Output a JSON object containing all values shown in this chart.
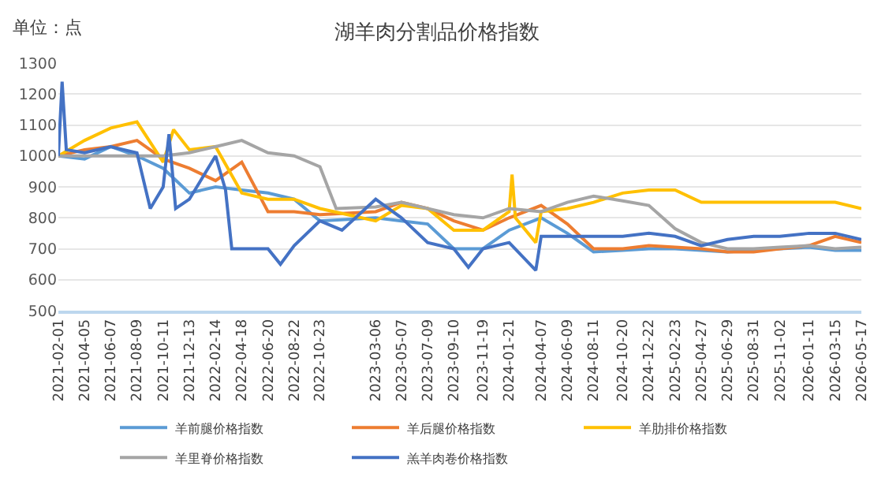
{
  "chart_data": {
    "type": "line",
    "title": "湖羊肉分割品价格指数",
    "annotations": [
      "单位：点"
    ],
    "ylim": [
      500,
      1300
    ],
    "yticks": [
      500,
      600,
      700,
      800,
      900,
      1000,
      1100,
      1200,
      1300
    ],
    "xlim": [
      "2021-02-01",
      "2026-05-17"
    ],
    "xticks": [
      "2021-02-01",
      "2021-04-05",
      "2021-06-07",
      "2021-08-09",
      "2021-10-11",
      "2021-12-13",
      "2022-02-14",
      "2022-04-18",
      "2022-06-20",
      "2022-08-22",
      "2022-10-23",
      "2023-03-06",
      "2023-05-07",
      "2023-07-09",
      "2023-09-10",
      "2023-11-19",
      "2024-01-21",
      "2024-04-07",
      "2024-06-09",
      "2024-08-11",
      "2024-10-20",
      "2024-12-22",
      "2025-02-23",
      "2025-04-27",
      "2025-06-29",
      "2025-08-31",
      "2025-11-02",
      "2026-01-11",
      "2026-03-15",
      "2026-05-17"
    ],
    "grid": "y",
    "legend": "bottom",
    "marker": "none",
    "line_style": "solid",
    "series": [
      {
        "name": "羊前腿价格指数",
        "color": "#5b9bd5",
        "x": [
          "2021-02-01",
          "2021-04-05",
          "2021-06-07",
          "2021-08-09",
          "2021-10-11",
          "2021-12-13",
          "2022-02-14",
          "2022-04-18",
          "2022-06-20",
          "2022-08-22",
          "2022-10-23",
          "2023-03-06",
          "2023-05-07",
          "2023-07-09",
          "2023-09-10",
          "2023-11-19",
          "2024-01-21",
          "2024-04-07",
          "2024-06-09",
          "2024-08-11",
          "2024-10-20",
          "2024-12-22",
          "2025-02-23",
          "2025-04-27",
          "2025-06-29",
          "2025-08-31",
          "2025-11-02",
          "2026-01-11",
          "2026-03-15",
          "2026-05-17"
        ],
        "values": [
          1000,
          990,
          1030,
          1000,
          960,
          880,
          900,
          890,
          880,
          860,
          790,
          800,
          790,
          780,
          700,
          700,
          760,
          800,
          750,
          690,
          695,
          700,
          700,
          695,
          690,
          695,
          700,
          705,
          695,
          695
        ]
      },
      {
        "name": "羊后腿价格指数",
        "color": "#ed7d31",
        "x": [
          "2021-02-01",
          "2021-04-05",
          "2021-06-07",
          "2021-08-09",
          "2021-10-11",
          "2021-12-13",
          "2022-02-14",
          "2022-04-18",
          "2022-06-20",
          "2022-08-22",
          "2022-10-23",
          "2023-03-06",
          "2023-05-07",
          "2023-07-09",
          "2023-09-10",
          "2023-11-19",
          "2024-01-21",
          "2024-04-07",
          "2024-06-09",
          "2024-08-11",
          "2024-10-20",
          "2024-12-22",
          "2025-02-23",
          "2025-04-27",
          "2025-06-29",
          "2025-08-31",
          "2025-11-02",
          "2026-01-11",
          "2026-03-15",
          "2026-05-17"
        ],
        "values": [
          1000,
          1020,
          1030,
          1050,
          990,
          960,
          920,
          980,
          820,
          820,
          810,
          820,
          850,
          830,
          790,
          760,
          800,
          840,
          780,
          700,
          700,
          710,
          705,
          700,
          690,
          690,
          700,
          710,
          740,
          720
        ]
      },
      {
        "name": "羊肋排价格指数",
        "color": "#ffc000",
        "x": [
          "2021-02-01",
          "2021-04-05",
          "2021-06-07",
          "2021-08-09",
          "2021-10-11",
          "2021-11-05",
          "2021-12-13",
          "2022-02-14",
          "2022-04-18",
          "2022-06-20",
          "2022-08-22",
          "2022-10-23",
          "2023-03-06",
          "2023-05-07",
          "2023-07-09",
          "2023-09-10",
          "2023-11-19",
          "2024-01-21",
          "2024-01-28",
          "2024-02-05",
          "2024-03-25",
          "2024-04-07",
          "2024-06-09",
          "2024-08-11",
          "2024-10-20",
          "2024-12-22",
          "2025-02-23",
          "2025-04-27",
          "2025-06-29",
          "2025-08-31",
          "2025-11-02",
          "2026-01-11",
          "2026-03-15",
          "2026-05-17"
        ],
        "values": [
          1000,
          1050,
          1090,
          1110,
          980,
          1085,
          1020,
          1030,
          880,
          860,
          860,
          830,
          790,
          840,
          830,
          760,
          760,
          820,
          940,
          800,
          720,
          820,
          830,
          850,
          880,
          890,
          890,
          850,
          850,
          850,
          850,
          850,
          850,
          830
        ]
      },
      {
        "name": "羊里脊价格指数",
        "color": "#a5a5a5",
        "x": [
          "2021-02-01",
          "2021-04-05",
          "2021-06-07",
          "2021-08-09",
          "2021-10-11",
          "2021-12-13",
          "2022-02-14",
          "2022-04-18",
          "2022-06-20",
          "2022-08-22",
          "2022-10-23",
          "2022-12-01",
          "2023-03-06",
          "2023-05-07",
          "2023-07-09",
          "2023-09-10",
          "2023-11-19",
          "2024-01-21",
          "2024-04-07",
          "2024-06-09",
          "2024-08-11",
          "2024-10-20",
          "2024-12-22",
          "2025-02-23",
          "2025-04-27",
          "2025-06-29",
          "2025-08-31",
          "2025-11-02",
          "2026-01-11",
          "2026-03-15",
          "2026-05-17"
        ],
        "values": [
          1000,
          1000,
          1000,
          1000,
          1000,
          1010,
          1030,
          1050,
          1010,
          1000,
          965,
          830,
          835,
          850,
          830,
          810,
          800,
          830,
          820,
          850,
          870,
          855,
          840,
          765,
          720,
          700,
          700,
          705,
          710,
          700,
          705
        ]
      },
      {
        "name": "羔羊肉卷价格指数",
        "color": "#4472c4",
        "x": [
          "2021-02-01",
          "2021-02-10",
          "2021-02-20",
          "2021-04-05",
          "2021-06-07",
          "2021-08-09",
          "2021-09-10",
          "2021-10-11",
          "2021-10-25",
          "2021-11-10",
          "2021-12-13",
          "2022-02-14",
          "2022-03-10",
          "2022-03-25",
          "2022-04-18",
          "2022-06-20",
          "2022-07-20",
          "2022-08-22",
          "2022-10-23",
          "2022-12-15",
          "2023-03-06",
          "2023-05-07",
          "2023-07-09",
          "2023-09-10",
          "2023-10-15",
          "2023-11-19",
          "2024-01-21",
          "2024-03-25",
          "2024-04-07",
          "2024-06-09",
          "2024-08-11",
          "2024-10-20",
          "2024-12-22",
          "2025-02-23",
          "2025-04-27",
          "2025-06-29",
          "2025-08-31",
          "2025-11-02",
          "2026-01-11",
          "2026-03-15",
          "2026-05-17"
        ],
        "values": [
          1000,
          1240,
          1020,
          1010,
          1030,
          1010,
          830,
          900,
          1070,
          830,
          860,
          1000,
          890,
          700,
          700,
          700,
          650,
          710,
          790,
          760,
          860,
          800,
          720,
          700,
          640,
          700,
          720,
          630,
          740,
          740,
          740,
          740,
          750,
          740,
          710,
          730,
          740,
          740,
          750,
          750,
          730
        ]
      }
    ]
  }
}
